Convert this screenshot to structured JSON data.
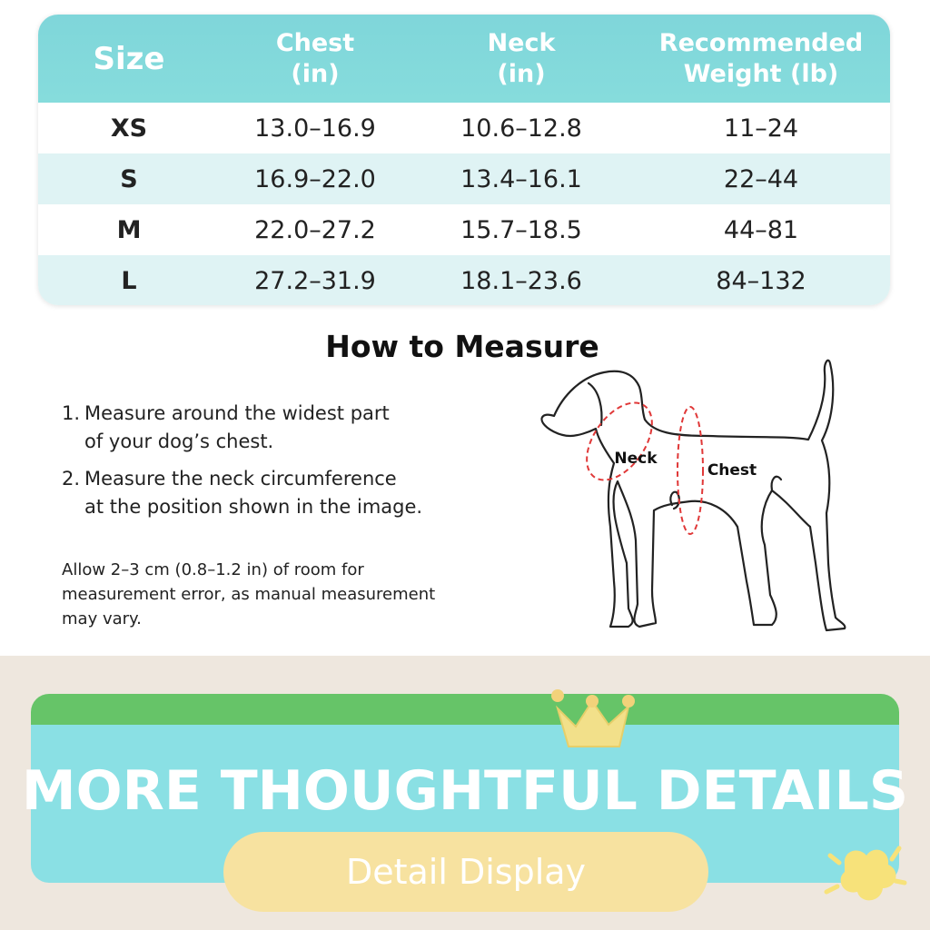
{
  "table": {
    "headers": [
      [
        "Size"
      ],
      [
        "Chest",
        "(in)"
      ],
      [
        "Neck",
        "(in)"
      ],
      [
        "Recommended",
        "Weight (lb)"
      ]
    ],
    "rows": [
      [
        "XS",
        "13.0–16.9",
        "10.6–12.8",
        "11–24"
      ],
      [
        "S",
        "16.9–22.0",
        "13.4–16.1",
        "22–44"
      ],
      [
        "M",
        "22.0–27.2",
        "15.7–18.5",
        "44–81"
      ],
      [
        "L",
        "27.2–31.9",
        "18.1–23.6",
        "84–132"
      ]
    ]
  },
  "measure": {
    "title": "How to Measure",
    "steps": [
      {
        "number": "1.",
        "lines": [
          "Measure around the widest part",
          "of your dog’s chest."
        ]
      },
      {
        "number": "2.",
        "lines": [
          "Measure the neck circumference",
          "at the position shown in the image."
        ]
      }
    ],
    "note": [
      "Allow 2–3 cm (0.8–1.2 in) of room for",
      "measurement error, as manual measurement",
      "may vary."
    ],
    "diagram_labels": {
      "neck": "Neck",
      "chest": "Chest"
    }
  },
  "banner": {
    "title": "MORE THOUGHTFUL DETAILS",
    "button": "Detail Display"
  }
}
